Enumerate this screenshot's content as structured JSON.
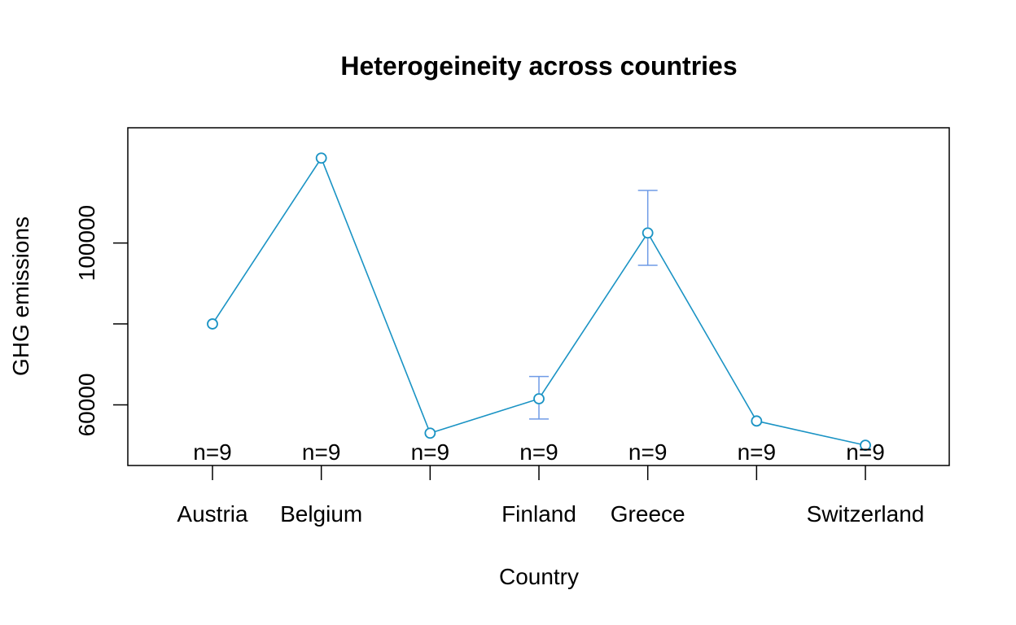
{
  "chart_data": {
    "type": "line",
    "title": "Heterogeineity across countries",
    "xlabel": "Country",
    "ylabel": "GHG emissions",
    "categories": [
      "Austria",
      "Belgium",
      "",
      "Finland",
      "Greece",
      "",
      "Switzerland"
    ],
    "series": [
      {
        "values": [
          80000,
          121000,
          53000,
          61500,
          102500,
          56000,
          50000
        ],
        "error_upper": [
          80000,
          121000,
          53000,
          67000,
          113000,
          56000,
          50000
        ],
        "error_lower": [
          80000,
          121000,
          53000,
          56500,
          94500,
          56000,
          50000
        ]
      }
    ],
    "n_labels": [
      "n=9",
      "n=9",
      "n=9",
      "n=9",
      "n=9",
      "n=9",
      "n=9"
    ],
    "yticks": [
      60000,
      100000
    ],
    "ylim": [
      45000,
      128500
    ],
    "grid": false,
    "colors": {
      "line": "#1a93c4",
      "error_bar": "#6f9be6",
      "axis": "#000000"
    }
  }
}
